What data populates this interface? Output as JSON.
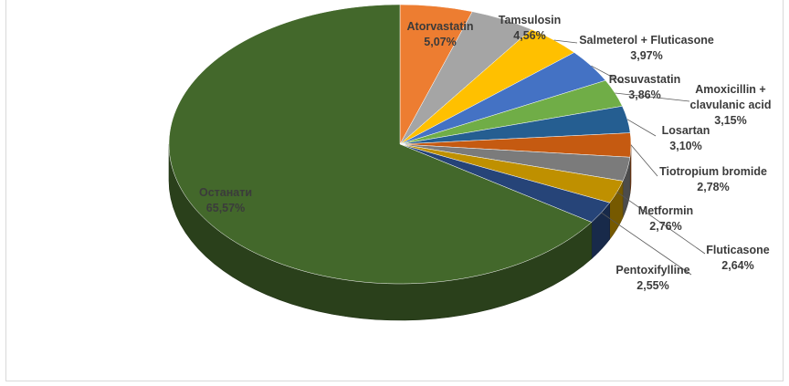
{
  "chart_data": {
    "type": "pie",
    "style": "3d-exploded-slice-labels",
    "slices": [
      {
        "name": "Atorvastatin",
        "value": 5.07,
        "label": "5,07%",
        "color": "#ED7D31"
      },
      {
        "name": "Tamsulosin",
        "value": 4.56,
        "label": "4,56%",
        "color": "#A5A5A5"
      },
      {
        "name": "Salmeterol + Fluticasone",
        "value": 3.97,
        "label": "3,97%",
        "color": "#FFC000"
      },
      {
        "name": "Rosuvastatin",
        "value": 3.86,
        "label": "3,86%",
        "color": "#4472C4"
      },
      {
        "name": "Amoxicillin + clavulanic acid",
        "name_lines": [
          "Amoxicillin +",
          "clavulanic acid"
        ],
        "value": 3.15,
        "label": "3,15%",
        "color": "#70AD47"
      },
      {
        "name": "Losartan",
        "value": 3.1,
        "label": "3,10%",
        "color": "#255E91"
      },
      {
        "name": "Tiotropium bromide",
        "value": 2.78,
        "label": "2,78%",
        "color": "#C55A11"
      },
      {
        "name": "Metformin",
        "value": 2.76,
        "label": "2,76%",
        "color": "#7B7B7B"
      },
      {
        "name": "Fluticasone",
        "value": 2.64,
        "label": "2,64%",
        "color": "#BF9000"
      },
      {
        "name": "Pentoxifylline",
        "value": 2.55,
        "label": "2,55%",
        "color": "#264478"
      },
      {
        "name": "Останати",
        "value": 65.57,
        "label": "65,57%",
        "color": "#43682B"
      }
    ],
    "title": "",
    "legend": "none"
  }
}
